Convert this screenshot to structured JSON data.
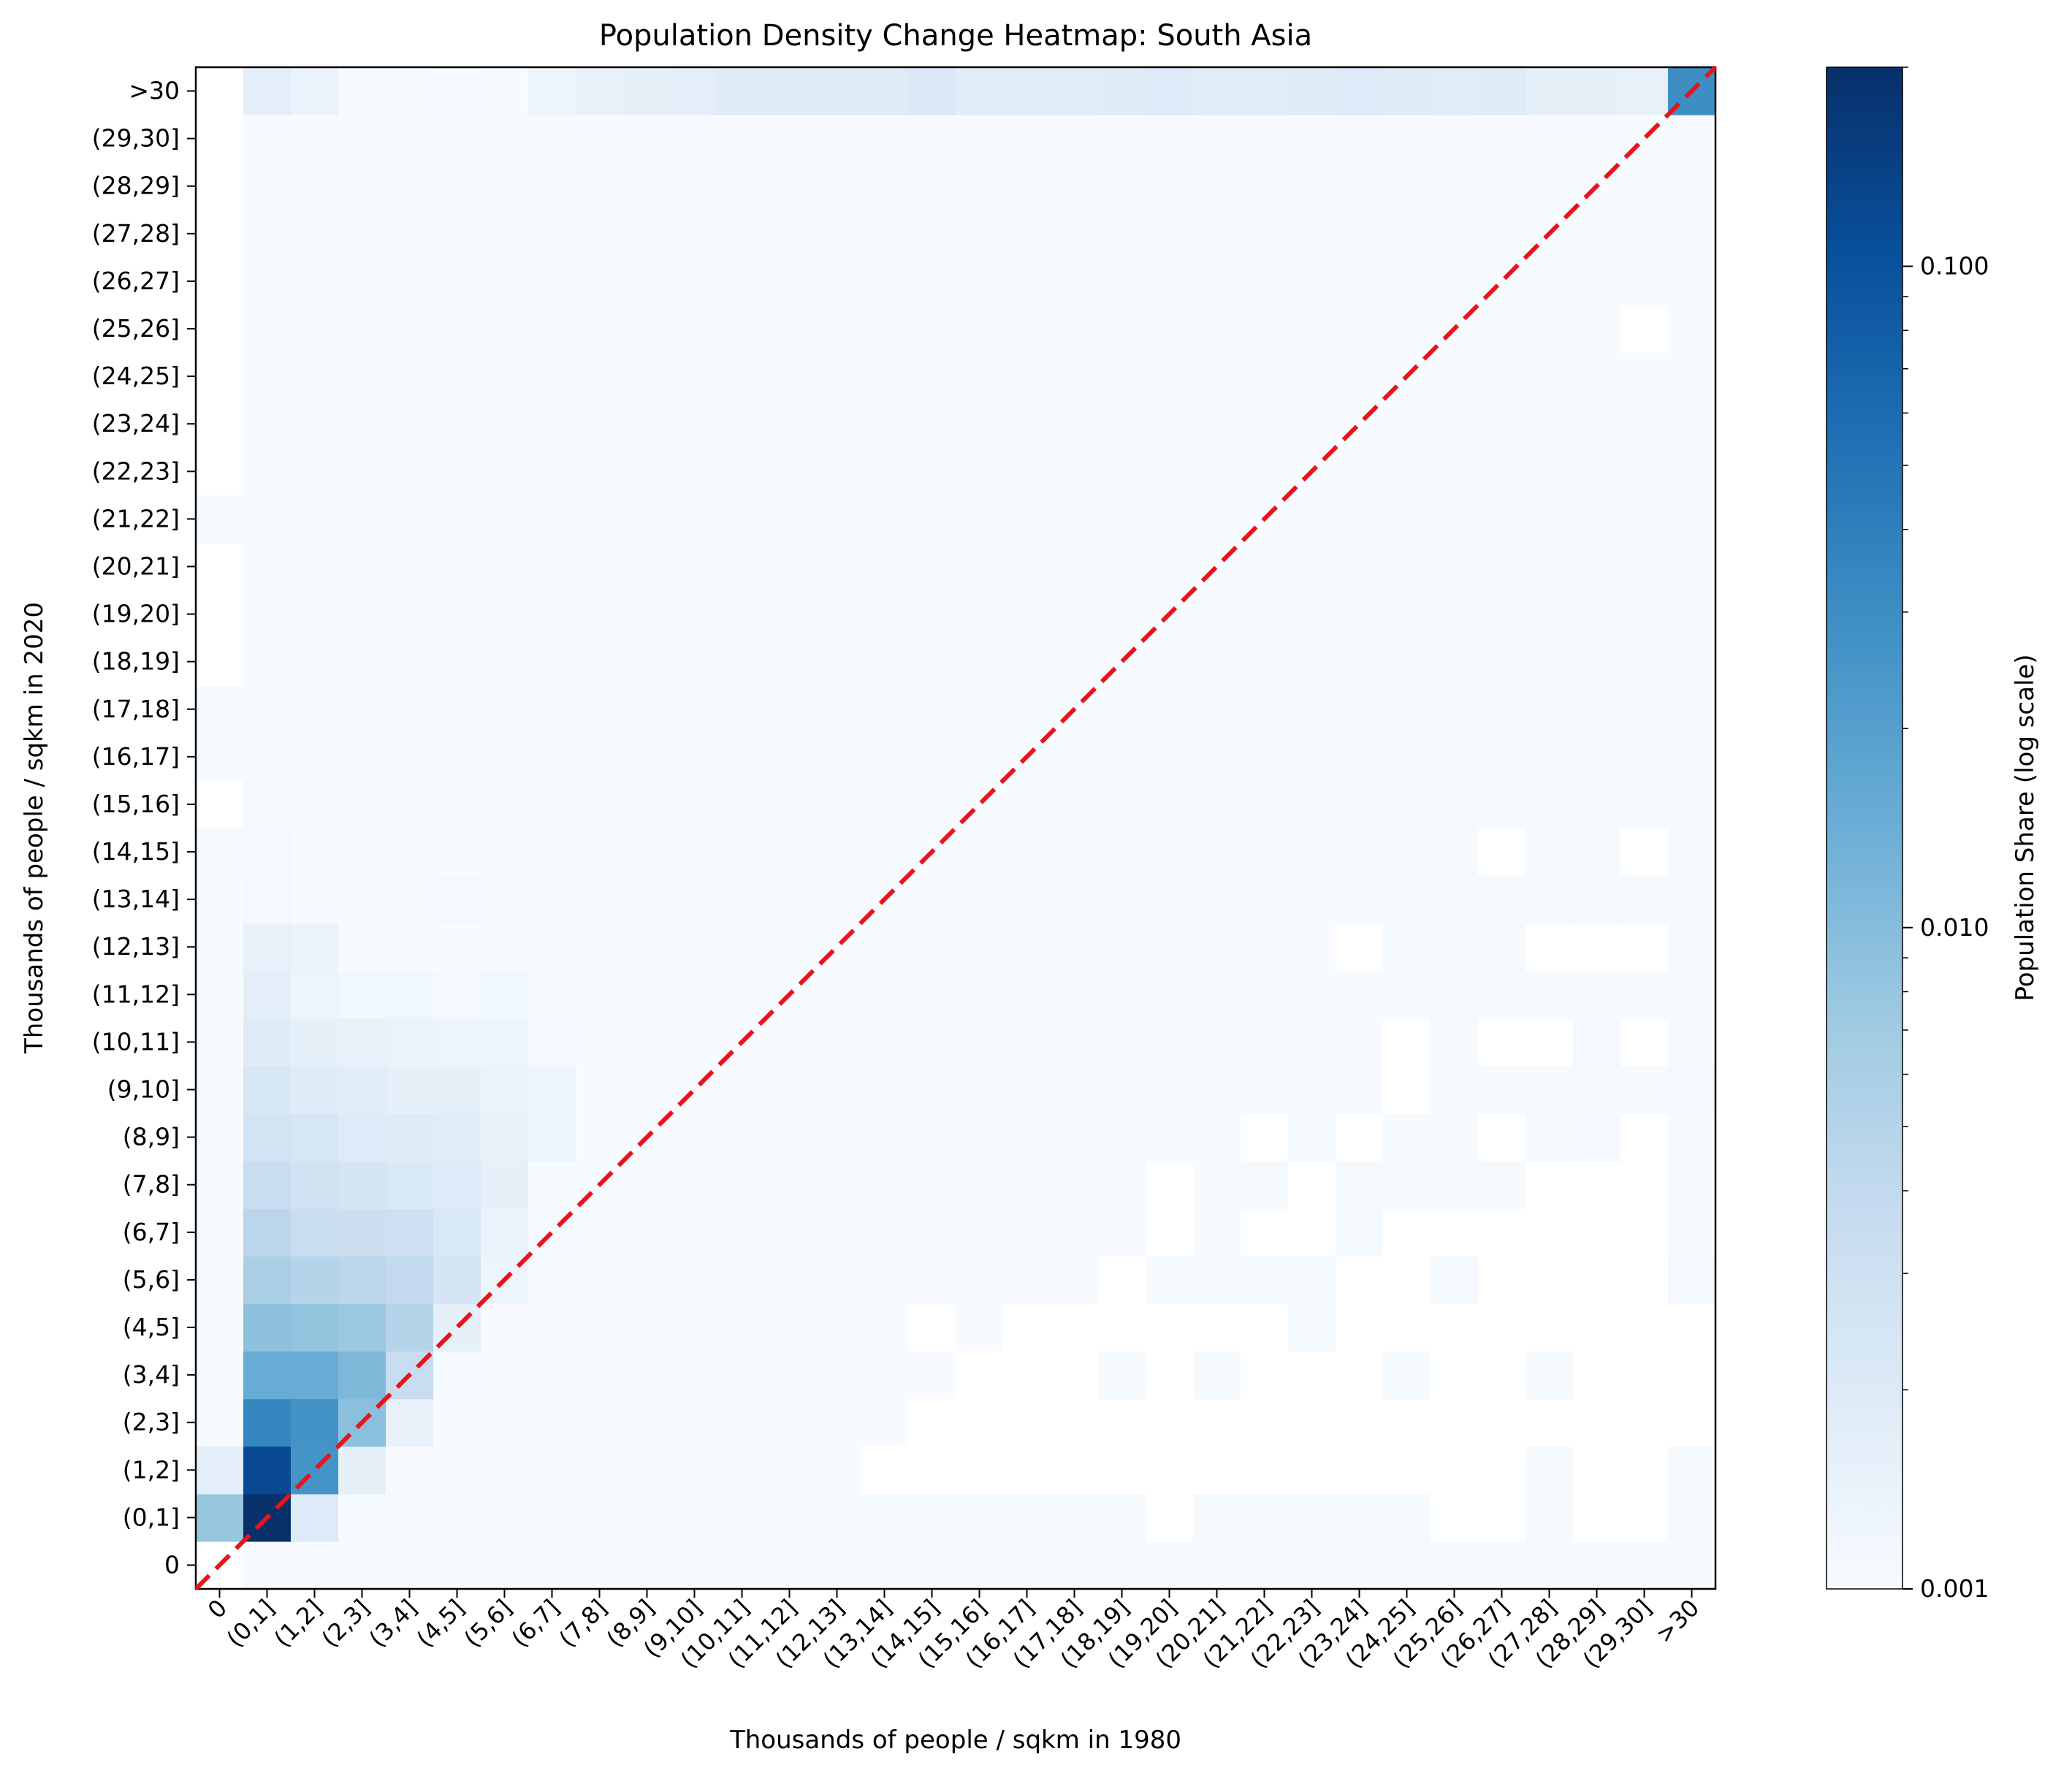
{
  "chart_data": {
    "type": "heatmap",
    "title": "Population Density Change Heatmap: South Asia",
    "xlabel": "Thousands of people / sqkm in 1980",
    "ylabel": "Thousands of people / sqkm in 2020",
    "categories": [
      "0",
      "(0,1]",
      "(1,2]",
      "(2,3]",
      "(3,4]",
      "(4,5]",
      "(5,6]",
      "(6,7]",
      "(7,8]",
      "(8,9]",
      "(9,10]",
      "(10,11]",
      "(11,12]",
      "(12,13]",
      "(13,14]",
      "(14,15]",
      "(15,16]",
      "(16,17]",
      "(17,18]",
      "(18,19]",
      "(19,20]",
      "(20,21]",
      "(21,22]",
      "(22,23]",
      "(23,24]",
      "(24,25]",
      "(25,26]",
      "(26,27]",
      "(27,28]",
      "(28,29]",
      "(29,30]",
      ">30"
    ],
    "x_categories": [
      "0",
      "(0,1]",
      "(1,2]",
      "(2,3]",
      "(3,4]",
      "(4,5]",
      "(5,6]",
      "(6,7]",
      "(7,8]",
      "(8,9]",
      "(9,10]",
      "(10,11]",
      "(11,12]",
      "(12,13]",
      "(13,14]",
      "(14,15]",
      "(15,16]",
      "(16,17]",
      "(17,18]",
      "(18,19]",
      "(19,20]",
      "(20,21]",
      "(21,22]",
      "(22,23]",
      "(23,24]",
      "(24,25]",
      "(25,26]",
      "(26,27]",
      "(27,28]",
      "(28,29]",
      "(29,30]",
      ">30"
    ],
    "y_categories": [
      "0",
      "(0,1]",
      "(1,2]",
      "(2,3]",
      "(3,4]",
      "(4,5]",
      "(5,6]",
      "(6,7]",
      "(7,8]",
      "(8,9]",
      "(9,10]",
      "(10,11]",
      "(11,12]",
      "(12,13]",
      "(13,14]",
      "(14,15]",
      "(15,16]",
      "(16,17]",
      "(17,18]",
      "(18,19]",
      "(19,20]",
      "(20,21]",
      "(21,22]",
      "(22,23]",
      "(23,24]",
      "(24,25]",
      "(25,26]",
      "(26,27]",
      "(27,28]",
      "(28,29]",
      "(29,30]",
      ">30"
    ],
    "colorbar": {
      "label": "Population Share (log scale)",
      "scale": "log",
      "min": 0.001,
      "max": 0.2,
      "ticks": [
        0.001,
        0.01,
        0.1
      ],
      "tick_labels": [
        "0.001",
        "0.010",
        "0.100"
      ],
      "colormap": "Blues"
    },
    "reference_line": {
      "style": "dashed",
      "color": "#e8141a",
      "description": "y = x diagonal"
    },
    "missing_value_color": "#ffffff",
    "z": [
      [
        0,
        0.001,
        0.001,
        0.001,
        0.001,
        0.001,
        0.001,
        0.001,
        0.001,
        0.001,
        0.001,
        0.001,
        0.001,
        0.001,
        0.001,
        0.001,
        0.001,
        0.001,
        0.001,
        0.001,
        0.001,
        0.001,
        0.001,
        0.001,
        0.001,
        0.001,
        0.001,
        0.001,
        0.001,
        0.001,
        0.001,
        0.001
      ],
      [
        0.008,
        0.2,
        0.002,
        0.00105,
        0.00105,
        0.00105,
        0.00105,
        0.00105,
        0.00105,
        0.00105,
        0.00105,
        0.00105,
        0.00105,
        0.00105,
        0.00105,
        0.00105,
        0.00105,
        0.00105,
        0.00105,
        0.00105,
        null,
        0.00105,
        0.00105,
        0.00105,
        0.00105,
        0.00105,
        null,
        null,
        0.00105,
        null,
        null,
        0.00105
      ],
      [
        0.0017,
        0.12,
        0.026,
        0.0016,
        0.001,
        0.001,
        0.001,
        0.001,
        0.001,
        0.001,
        0.001,
        0.001,
        0.001,
        0.001,
        null,
        null,
        null,
        null,
        null,
        null,
        null,
        null,
        null,
        null,
        null,
        null,
        null,
        null,
        0.00105,
        null,
        null,
        0.00105
      ],
      [
        0.001,
        0.035,
        0.027,
        0.0095,
        0.0015,
        0.001,
        0.001,
        0.001,
        0.001,
        0.001,
        0.001,
        0.001,
        0.001,
        0.001,
        0.001,
        null,
        null,
        null,
        null,
        null,
        null,
        null,
        null,
        null,
        null,
        null,
        null,
        null,
        null,
        null,
        null,
        null
      ],
      [
        0.001,
        0.015,
        0.015,
        0.011,
        0.0035,
        0.0011,
        0.001,
        0.001,
        0.001,
        0.001,
        0.001,
        0.001,
        0.001,
        0.001,
        0.001,
        0.001,
        null,
        null,
        null,
        0.00105,
        null,
        0.00105,
        null,
        null,
        null,
        0.00105,
        null,
        null,
        0.00105,
        null,
        null,
        null
      ],
      [
        0.001,
        0.009,
        0.0085,
        0.0075,
        0.005,
        0.0016,
        0.001,
        0.001,
        0.001,
        0.001,
        0.001,
        0.001,
        0.001,
        0.001,
        0.001,
        null,
        0.001,
        null,
        null,
        null,
        null,
        null,
        null,
        0.00105,
        null,
        null,
        null,
        null,
        null,
        null,
        null,
        null
      ],
      [
        0.001,
        0.006,
        0.005,
        0.0045,
        0.004,
        0.0025,
        0.0013,
        0.001,
        0.001,
        0.001,
        0.001,
        0.001,
        0.001,
        0.001,
        0.001,
        0.001,
        0.001,
        0.001,
        0.001,
        null,
        0.00105,
        0.00105,
        0.00105,
        0.00105,
        null,
        null,
        0.0011,
        null,
        null,
        null,
        null,
        0.0011
      ],
      [
        0.001,
        0.0045,
        0.0035,
        0.0032,
        0.003,
        0.0022,
        0.0014,
        0.0011,
        0.001,
        0.001,
        0.001,
        0.001,
        0.001,
        0.001,
        0.001,
        0.001,
        0.001,
        0.001,
        0.001,
        0.001,
        null,
        0.001,
        null,
        null,
        0.00105,
        null,
        null,
        null,
        null,
        null,
        null,
        0.00105
      ],
      [
        0.001,
        0.0035,
        0.0028,
        0.0025,
        0.0022,
        0.002,
        0.0016,
        0.001,
        0.001,
        0.001,
        0.001,
        0.001,
        0.001,
        0.001,
        0.001,
        0.001,
        0.001,
        0.001,
        0.001,
        0.001,
        null,
        0.001,
        0.00105,
        null,
        0.00105,
        0.00105,
        0.00105,
        0.00105,
        null,
        null,
        null,
        0.00105
      ],
      [
        0.001,
        0.0027,
        0.0024,
        0.002,
        0.0019,
        0.0018,
        0.0015,
        0.0013,
        0.001,
        0.001,
        0.001,
        0.001,
        0.001,
        0.001,
        0.001,
        0.001,
        0.001,
        0.001,
        0.001,
        0.001,
        0.001,
        0.001,
        null,
        0.00105,
        null,
        0.00105,
        0.00105,
        null,
        0.00105,
        0.0011,
        null,
        0.00105
      ],
      [
        0.001,
        0.0023,
        0.0019,
        0.0018,
        0.0016,
        0.0016,
        0.0014,
        0.0013,
        0.001,
        0.001,
        0.001,
        0.001,
        0.001,
        0.001,
        0.001,
        0.001,
        0.001,
        0.001,
        0.001,
        0.001,
        0.001,
        0.001,
        0.001,
        0.001,
        0.001,
        null,
        0.00105,
        0.00105,
        0.00105,
        0.00105,
        0.00105,
        0.0011
      ],
      [
        0.001,
        0.0019,
        0.0016,
        0.0015,
        0.0014,
        0.0013,
        0.0013,
        0.0011,
        0.001,
        0.001,
        0.001,
        0.001,
        0.001,
        0.001,
        0.001,
        0.001,
        0.001,
        0.001,
        0.001,
        0.001,
        0.001,
        0.001,
        0.001,
        0.001,
        0.001,
        null,
        0.00105,
        null,
        null,
        0.0011,
        null,
        0.00105
      ],
      [
        0.001,
        0.0017,
        0.0013,
        0.0012,
        0.0012,
        0.0011,
        0.0012,
        0.001,
        0.001,
        0.001,
        0.001,
        0.001,
        0.001,
        0.001,
        0.001,
        0.001,
        0.001,
        0.001,
        0.001,
        0.001,
        0.001,
        0.001,
        0.001,
        0.001,
        0.001,
        0.00105,
        0.00105,
        0.00105,
        0.00105,
        0.00105,
        0.00105,
        0.00105
      ],
      [
        0.001,
        0.0015,
        0.0014,
        0.001,
        0.001,
        0.001,
        0.00105,
        0.001,
        0.001,
        0.001,
        0.001,
        0.001,
        0.001,
        0.001,
        0.001,
        0.001,
        0.001,
        0.001,
        0.001,
        0.001,
        0.001,
        0.001,
        0.001,
        0.001,
        null,
        0.00105,
        0.00105,
        0.00105,
        null,
        null,
        null,
        0.00105
      ],
      [
        0.001,
        0.0011,
        0.001,
        0.001,
        0.001,
        0.0011,
        0.001,
        0.001,
        0.001,
        0.001,
        0.001,
        0.001,
        0.001,
        0.001,
        0.001,
        0.001,
        0.001,
        0.001,
        0.001,
        0.001,
        0.001,
        0.001,
        0.001,
        0.001,
        0.00105,
        0.00105,
        0.00105,
        0.00105,
        0.00105,
        0.00105,
        0.00105,
        0.00105
      ],
      [
        0.00105,
        0.0011,
        0.001,
        0.001,
        0.001,
        0.001,
        0.001,
        0.001,
        0.001,
        0.001,
        0.001,
        0.001,
        0.001,
        0.001,
        0.001,
        0.001,
        0.001,
        0.001,
        0.001,
        0.001,
        0.001,
        0.001,
        0.001,
        0.001,
        0.00105,
        0.00105,
        0.00105,
        null,
        0.00105,
        0.00105,
        null,
        0.00105
      ],
      [
        null,
        0.00105,
        0.001,
        0.001,
        0.001,
        0.001,
        0.001,
        0.001,
        0.001,
        0.001,
        0.001,
        0.001,
        0.001,
        0.001,
        0.001,
        0.001,
        0.001,
        0.001,
        0.001,
        0.001,
        0.001,
        0.001,
        0.001,
        0.001,
        0.00105,
        0.00105,
        0.00105,
        0.00105,
        0.00105,
        0.00105,
        0.00105,
        0.00105
      ],
      [
        0.00102,
        0.001,
        0.001,
        0.001,
        0.001,
        0.001,
        0.001,
        0.001,
        0.001,
        0.001,
        0.001,
        0.001,
        0.001,
        0.001,
        0.001,
        0.001,
        0.001,
        0.001,
        0.001,
        0.001,
        0.001,
        0.001,
        0.001,
        0.001,
        0.001,
        0.001,
        0.001,
        0.001,
        0.001,
        0.001,
        0.001,
        0.001
      ],
      [
        0.00102,
        0.001,
        0.001,
        0.001,
        0.001,
        0.001,
        0.001,
        0.001,
        0.001,
        0.001,
        0.001,
        0.001,
        0.001,
        0.001,
        0.001,
        0.001,
        0.001,
        0.001,
        0.001,
        0.001,
        0.001,
        0.001,
        0.001,
        0.001,
        0.001,
        0.001,
        0.001,
        0.001,
        0.001,
        0.001,
        0.001,
        0.001
      ],
      [
        null,
        0.001,
        0.001,
        0.001,
        0.001,
        0.001,
        0.001,
        0.001,
        0.001,
        0.001,
        0.001,
        0.001,
        0.001,
        0.001,
        0.001,
        0.001,
        0.001,
        0.001,
        0.001,
        0.001,
        0.001,
        0.001,
        0.001,
        0.001,
        0.001,
        0.001,
        0.001,
        0.001,
        0.001,
        0.001,
        0.001,
        0.001
      ],
      [
        null,
        0.001,
        0.001,
        0.001,
        0.001,
        0.001,
        0.001,
        0.001,
        0.001,
        0.001,
        0.001,
        0.001,
        0.001,
        0.001,
        0.001,
        0.001,
        0.001,
        0.001,
        0.001,
        0.001,
        0.001,
        0.001,
        0.001,
        0.001,
        0.001,
        0.001,
        0.001,
        0.001,
        0.001,
        0.001,
        0.001,
        0.001
      ],
      [
        null,
        0.001,
        0.001,
        0.001,
        0.001,
        0.001,
        0.001,
        0.001,
        0.001,
        0.001,
        0.001,
        0.001,
        0.001,
        0.001,
        0.001,
        0.001,
        0.001,
        0.001,
        0.001,
        0.001,
        0.001,
        0.001,
        0.001,
        0.001,
        0.001,
        0.001,
        0.001,
        0.001,
        0.001,
        0.001,
        0.001,
        0.001
      ],
      [
        0.00104,
        0.001,
        0.001,
        0.001,
        0.001,
        0.001,
        0.001,
        0.001,
        0.001,
        0.001,
        0.001,
        0.001,
        0.001,
        0.001,
        0.001,
        0.001,
        0.001,
        0.001,
        0.001,
        0.001,
        0.001,
        0.001,
        0.001,
        0.001,
        0.001,
        0.001,
        0.001,
        0.001,
        0.001,
        0.001,
        0.001,
        0.001
      ],
      [
        null,
        0.001,
        0.001,
        0.001,
        0.001,
        0.001,
        0.001,
        0.001,
        0.001,
        0.001,
        0.001,
        0.001,
        0.001,
        0.001,
        0.001,
        0.001,
        0.001,
        0.001,
        0.001,
        0.001,
        0.001,
        0.001,
        0.001,
        0.001,
        0.001,
        0.001,
        0.001,
        0.001,
        0.001,
        0.001,
        0.001,
        0.001
      ],
      [
        null,
        0.001,
        0.001,
        0.001,
        0.001,
        0.001,
        0.001,
        0.001,
        0.001,
        0.001,
        0.001,
        0.001,
        0.001,
        0.001,
        0.001,
        0.001,
        0.001,
        0.001,
        0.001,
        0.001,
        0.001,
        0.001,
        0.001,
        0.001,
        0.001,
        0.001,
        0.001,
        0.001,
        0.001,
        0.001,
        0.001,
        0.001
      ],
      [
        null,
        0.001,
        0.001,
        0.001,
        0.001,
        0.001,
        0.001,
        0.001,
        0.001,
        0.001,
        0.001,
        0.001,
        0.001,
        0.001,
        0.001,
        0.001,
        0.001,
        0.001,
        0.001,
        0.001,
        0.001,
        0.001,
        0.001,
        0.001,
        0.001,
        0.001,
        0.001,
        0.001,
        0.001,
        0.001,
        0.001,
        0.001
      ],
      [
        null,
        0.001,
        0.001,
        0.001,
        0.001,
        0.001,
        0.001,
        0.001,
        0.001,
        0.001,
        0.001,
        0.001,
        0.001,
        0.001,
        0.001,
        0.001,
        0.001,
        0.001,
        0.001,
        0.001,
        0.001,
        0.001,
        0.001,
        0.001,
        0.001,
        0.001,
        0.001,
        0.001,
        0.001,
        0.001,
        null,
        0.001
      ],
      [
        null,
        0.001,
        0.001,
        0.001,
        0.001,
        0.001,
        0.001,
        0.001,
        0.001,
        0.001,
        0.001,
        0.001,
        0.001,
        0.001,
        0.001,
        0.001,
        0.001,
        0.001,
        0.001,
        0.001,
        0.001,
        0.001,
        0.001,
        0.001,
        0.001,
        0.001,
        0.001,
        0.001,
        0.001,
        0.001,
        0.001,
        0.001
      ],
      [
        null,
        0.001,
        0.001,
        0.001,
        0.001,
        0.001,
        0.001,
        0.001,
        0.001,
        0.001,
        0.001,
        0.001,
        0.001,
        0.001,
        0.001,
        0.001,
        0.001,
        0.001,
        0.001,
        0.001,
        0.001,
        0.001,
        0.001,
        0.001,
        0.001,
        0.001,
        0.001,
        0.001,
        0.001,
        0.001,
        0.001,
        0.001
      ],
      [
        null,
        0.001,
        0.001,
        0.001,
        0.001,
        0.001,
        0.001,
        0.001,
        0.001,
        0.001,
        0.001,
        0.001,
        0.001,
        0.001,
        0.001,
        0.001,
        0.001,
        0.001,
        0.001,
        0.001,
        0.001,
        0.001,
        0.001,
        0.001,
        0.001,
        0.001,
        0.001,
        0.001,
        0.001,
        0.001,
        0.001,
        0.001
      ],
      [
        null,
        0.001,
        0.001,
        0.001,
        0.001,
        0.001,
        0.001,
        0.001,
        0.001,
        0.001,
        0.001,
        0.001,
        0.001,
        0.001,
        0.001,
        0.001,
        0.001,
        0.001,
        0.001,
        0.001,
        0.001,
        0.001,
        0.001,
        0.001,
        0.001,
        0.001,
        0.001,
        0.001,
        0.001,
        0.001,
        0.001,
        0.001
      ],
      [
        null,
        0.0017,
        0.0014,
        0.001,
        0.00105,
        0.0011,
        0.001,
        0.0013,
        0.0015,
        0.0016,
        0.0017,
        0.0019,
        0.0019,
        0.0019,
        0.0019,
        0.0021,
        0.0018,
        0.0018,
        0.0018,
        0.0019,
        0.002,
        0.0018,
        0.0018,
        0.0019,
        0.002,
        0.0019,
        0.0018,
        0.0019,
        0.0016,
        0.0016,
        0.0015,
        0.03
      ]
    ]
  }
}
